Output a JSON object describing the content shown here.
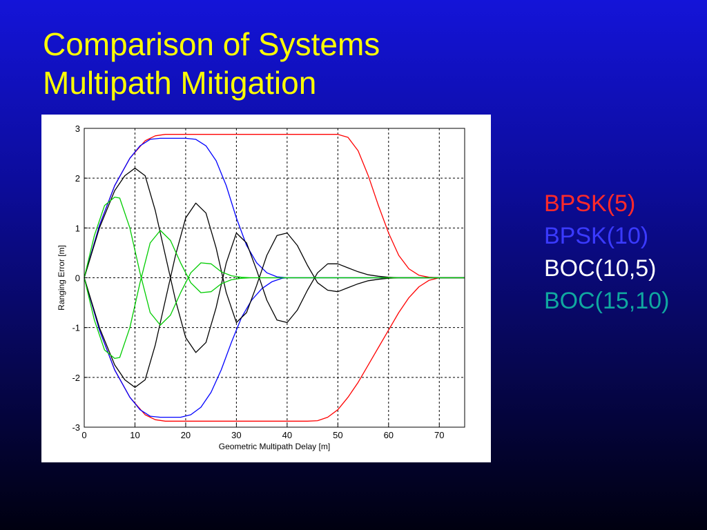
{
  "slide": {
    "title_line1": "Comparison of Systems",
    "title_line2": "Multipath Mitigation"
  },
  "legend": [
    {
      "label": "BPSK(5)",
      "color": "#ff2a2a"
    },
    {
      "label": "BPSK(10)",
      "color": "#3a3aff"
    },
    {
      "label": "BOC(10,5)",
      "color": "#ffffff"
    },
    {
      "label": "BOC(15,10)",
      "color": "#10a8a0"
    }
  ],
  "chart_data": {
    "type": "line",
    "title": "",
    "xlabel": "Geometric Multipath Delay [m]",
    "ylabel": "Ranging Error [m]",
    "xlim": [
      0,
      75
    ],
    "ylim": [
      -3,
      3
    ],
    "xticks": [
      0,
      10,
      20,
      30,
      40,
      50,
      60,
      70
    ],
    "yticks": [
      -3,
      -2,
      -1,
      0,
      1,
      2,
      3
    ],
    "grid": true,
    "series": [
      {
        "label": "BPSK(5)",
        "envelope": "upper",
        "color": "#ff0000",
        "x": [
          0,
          3,
          6,
          9,
          12,
          14,
          16,
          20,
          30,
          40,
          50,
          52,
          54,
          56,
          58,
          60,
          62,
          64,
          66,
          68,
          70,
          75
        ],
        "y": [
          0,
          1.05,
          1.85,
          2.4,
          2.75,
          2.85,
          2.88,
          2.88,
          2.88,
          2.88,
          2.88,
          2.82,
          2.55,
          2.05,
          1.45,
          0.9,
          0.45,
          0.18,
          0.05,
          0.01,
          0,
          0
        ]
      },
      {
        "label": "BPSK(5)",
        "envelope": "lower",
        "color": "#ff0000",
        "x": [
          0,
          3,
          6,
          9,
          12,
          14,
          16,
          20,
          30,
          40,
          44,
          46,
          48,
          50,
          52,
          54,
          56,
          58,
          60,
          62,
          64,
          66,
          68,
          70,
          75
        ],
        "y": [
          0,
          -1.05,
          -1.85,
          -2.4,
          -2.75,
          -2.85,
          -2.88,
          -2.88,
          -2.88,
          -2.88,
          -2.88,
          -2.87,
          -2.8,
          -2.65,
          -2.4,
          -2.1,
          -1.75,
          -1.4,
          -1.05,
          -0.7,
          -0.4,
          -0.18,
          -0.05,
          0,
          0
        ]
      },
      {
        "label": "BPSK(10)",
        "envelope": "upper",
        "color": "#0000ff",
        "x": [
          0,
          3,
          6,
          9,
          11,
          13,
          15,
          20,
          22,
          24,
          26,
          28,
          30,
          32,
          34,
          36,
          38,
          40,
          45,
          75
        ],
        "y": [
          0,
          1.05,
          1.85,
          2.4,
          2.65,
          2.78,
          2.8,
          2.8,
          2.78,
          2.65,
          2.35,
          1.85,
          1.2,
          0.65,
          0.3,
          0.1,
          0.02,
          0,
          0,
          0
        ]
      },
      {
        "label": "BPSK(10)",
        "envelope": "lower",
        "color": "#0000ff",
        "x": [
          0,
          3,
          6,
          9,
          11,
          13,
          15,
          19,
          21,
          23,
          25,
          27,
          29,
          31,
          33,
          35,
          37,
          39,
          40,
          45,
          75
        ],
        "y": [
          0,
          -1.05,
          -1.85,
          -2.4,
          -2.65,
          -2.78,
          -2.8,
          -2.8,
          -2.75,
          -2.6,
          -2.3,
          -1.85,
          -1.3,
          -0.8,
          -0.45,
          -0.22,
          -0.08,
          -0.01,
          0,
          0,
          0
        ]
      },
      {
        "label": "BOC(10,5)",
        "envelope": "upper",
        "color": "#000000",
        "x": [
          0,
          3,
          6,
          8,
          10,
          12,
          14,
          16,
          18,
          20,
          22,
          24,
          26,
          28,
          30,
          32,
          34,
          36,
          38,
          40,
          42,
          44,
          46,
          48,
          50,
          52,
          54,
          56,
          58,
          60,
          62,
          64,
          66,
          68,
          70,
          75
        ],
        "y": [
          0,
          1.0,
          1.75,
          2.05,
          2.2,
          2.05,
          1.35,
          0.45,
          -0.45,
          -1.2,
          -1.5,
          -1.3,
          -0.6,
          0.3,
          0.9,
          0.7,
          0.15,
          -0.45,
          -0.85,
          -0.9,
          -0.65,
          -0.25,
          0.1,
          0.28,
          0.28,
          0.2,
          0.12,
          0.06,
          0.03,
          0.01,
          0,
          0,
          0,
          0,
          0,
          0
        ]
      },
      {
        "label": "BOC(10,5)",
        "envelope": "lower",
        "color": "#000000",
        "x": [
          0,
          3,
          6,
          8,
          10,
          12,
          14,
          16,
          18,
          20,
          22,
          24,
          26,
          28,
          30,
          32,
          34,
          36,
          38,
          40,
          42,
          44,
          46,
          48,
          50,
          52,
          54,
          56,
          58,
          60,
          62,
          64,
          66,
          68,
          70,
          75
        ],
        "y": [
          0,
          -1.0,
          -1.75,
          -2.05,
          -2.2,
          -2.05,
          -1.35,
          -0.45,
          0.45,
          1.2,
          1.5,
          1.3,
          0.6,
          -0.3,
          -0.9,
          -0.7,
          -0.15,
          0.45,
          0.85,
          0.9,
          0.65,
          0.25,
          -0.1,
          -0.25,
          -0.28,
          -0.2,
          -0.12,
          -0.06,
          -0.03,
          -0.01,
          0,
          0,
          0,
          0,
          0,
          0
        ]
      },
      {
        "label": "BOC(15,10)",
        "envelope": "upper",
        "color": "#00cc00",
        "x": [
          0,
          2,
          4,
          6,
          7,
          9,
          11,
          13,
          15,
          17,
          19,
          21,
          23,
          25,
          27,
          29,
          31,
          33,
          35,
          40,
          75
        ],
        "y": [
          0,
          0.85,
          1.45,
          1.62,
          1.6,
          1.0,
          0.1,
          -0.7,
          -0.95,
          -0.75,
          -0.3,
          0.1,
          0.3,
          0.28,
          0.12,
          0.04,
          0.01,
          0,
          0,
          0,
          0
        ]
      },
      {
        "label": "BOC(15,10)",
        "envelope": "lower",
        "color": "#00cc00",
        "x": [
          0,
          2,
          4,
          6,
          7,
          9,
          11,
          13,
          15,
          17,
          19,
          21,
          23,
          25,
          27,
          29,
          31,
          33,
          35,
          40,
          75
        ],
        "y": [
          0,
          -0.85,
          -1.45,
          -1.62,
          -1.6,
          -1.0,
          -0.1,
          0.7,
          0.95,
          0.75,
          0.3,
          -0.1,
          -0.3,
          -0.28,
          -0.12,
          -0.04,
          -0.01,
          0,
          0,
          0,
          0
        ]
      }
    ]
  }
}
